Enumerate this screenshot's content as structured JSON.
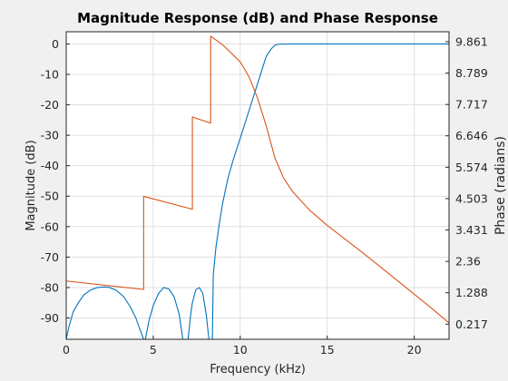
{
  "chart_data": {
    "type": "line",
    "title": "Magnitude Response (dB) and Phase Response",
    "xlabel": "Frequency (kHz)",
    "ylabel": "Magnitude (dB)",
    "y2label": "Phase (radians)",
    "xlim": [
      0,
      22
    ],
    "ylim": [
      -97,
      4
    ],
    "y2lim": [
      -0.3,
      10.2
    ],
    "x_ticks": [
      0,
      5,
      10,
      15,
      20
    ],
    "x_tick_labels": [
      "0",
      "5",
      "10",
      "15",
      "20"
    ],
    "y_ticks": [
      0,
      -10,
      -20,
      -30,
      -40,
      -50,
      -60,
      -70,
      -80,
      -90
    ],
    "y_tick_labels": [
      "0",
      "-10",
      "-20",
      "-30",
      "-40",
      "-50",
      "-60",
      "-70",
      "-80",
      "-90"
    ],
    "y2_ticks": [
      9.861,
      8.789,
      7.717,
      6.646,
      5.574,
      4.503,
      3.431,
      2.36,
      1.288,
      0.217
    ],
    "y2_tick_labels": [
      "9.861",
      "8.789",
      "7.717",
      "6.646",
      "5.574",
      "4.503",
      "3.431",
      "2.36",
      "1.288",
      "0.217"
    ],
    "grid": true,
    "colors": {
      "magnitude": "#0072bd",
      "phase": "#d95319"
    },
    "series": [
      {
        "axis": "left",
        "x": [
          0,
          0.15,
          0.4,
          0.7,
          1.0,
          1.4,
          1.8,
          2.2,
          2.5,
          2.9,
          3.3,
          3.7,
          4.0,
          4.25,
          4.45,
          4.55,
          4.75,
          5.0,
          5.3,
          5.6,
          5.9,
          6.2,
          6.5,
          6.7,
          6.85,
          7.0,
          7.15,
          7.25,
          7.45,
          7.65,
          7.85,
          8.05,
          8.2,
          8.3,
          8.4,
          8.45,
          8.6,
          8.8,
          9.0,
          9.3,
          9.6,
          10.0,
          10.5,
          11.0,
          11.5,
          11.8,
          12.0,
          12.2,
          13,
          14,
          15,
          16,
          17,
          18,
          19,
          20,
          21,
          22
        ],
        "y": [
          -97,
          -93,
          -88,
          -85,
          -82.5,
          -80.8,
          -80,
          -79.8,
          -80,
          -81,
          -83,
          -86.5,
          -90,
          -94,
          -97,
          -97,
          -91,
          -86,
          -82,
          -80,
          -80.5,
          -83,
          -89,
          -97,
          -97,
          -97,
          -89,
          -85,
          -80.7,
          -80,
          -82,
          -89,
          -97,
          -97,
          -97,
          -76,
          -67,
          -59,
          -52,
          -44,
          -38,
          -31,
          -22,
          -13,
          -4,
          -1.5,
          -0.4,
          -0.1,
          0,
          0,
          0,
          0,
          0,
          0,
          0,
          0,
          0,
          0
        ]
      },
      {
        "axis": "right",
        "x": [
          0,
          4.45,
          4.45,
          7.25,
          7.25,
          8.3,
          8.3,
          9,
          10,
          10.5,
          11,
          11.5,
          12,
          12.5,
          13,
          14,
          15,
          16,
          17,
          18,
          19,
          20,
          21,
          22
        ],
        "y": [
          1.69,
          1.4,
          4.58,
          4.14,
          7.29,
          7.08,
          10.05,
          9.75,
          9.17,
          8.67,
          7.93,
          6.97,
          5.88,
          5.2,
          4.75,
          4.1,
          3.59,
          3.13,
          2.67,
          2.2,
          1.72,
          1.24,
          0.76,
          0.26
        ]
      }
    ]
  }
}
